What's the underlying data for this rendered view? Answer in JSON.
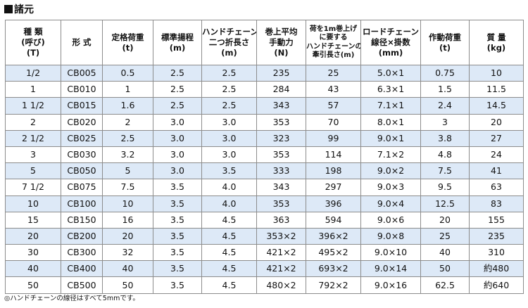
{
  "title": "諸元",
  "headers": [
    [
      "種 類",
      "(呼び)",
      "(T)"
    ],
    [
      "形 式"
    ],
    [
      "定格荷重",
      "(t)"
    ],
    [
      "標準揚程",
      "(m)"
    ],
    [
      "ハンドチェーン",
      "二つ折長さ",
      "(m)"
    ],
    [
      "巻上平均",
      "手動力",
      "(N)"
    ],
    [
      "荷を1m巻上げ",
      "に要する",
      "ハンドチェーンの",
      "牽引長さ(m)"
    ],
    [
      "ロードチェーン",
      "線径×掛数",
      "(mm)"
    ],
    [
      "作動荷重",
      "(t)"
    ],
    [
      "質 量",
      "(kg)"
    ]
  ],
  "rows": [
    [
      "1/2",
      "CB005",
      "0.5",
      "2.5",
      "2.5",
      "235",
      "25",
      "5.0×1",
      "0.75",
      "10"
    ],
    [
      "1",
      "CB010",
      "1",
      "2.5",
      "2.5",
      "284",
      "43",
      "6.3×1",
      "1.5",
      "11.5"
    ],
    [
      "1 1/2",
      "CB015",
      "1.6",
      "2.5",
      "2.5",
      "343",
      "57",
      "7.1×1",
      "2.4",
      "14.5"
    ],
    [
      "2",
      "CB020",
      "2",
      "3.0",
      "3.0",
      "353",
      "70",
      "8.0×1",
      "3",
      "20"
    ],
    [
      "2 1/2",
      "CB025",
      "2.5",
      "3.0",
      "3.0",
      "323",
      "99",
      "9.0×1",
      "3.8",
      "27"
    ],
    [
      "3",
      "CB030",
      "3.2",
      "3.0",
      "3.0",
      "353",
      "114",
      "7.1×2",
      "4.8",
      "24"
    ],
    [
      "5",
      "CB050",
      "5",
      "3.0",
      "3.5",
      "333",
      "198",
      "9.0×2",
      "7.5",
      "41"
    ],
    [
      "7 1/2",
      "CB075",
      "7.5",
      "3.5",
      "4.0",
      "343",
      "297",
      "9.0×3",
      "9.5",
      "63"
    ],
    [
      "10",
      "CB100",
      "10",
      "3.5",
      "4.0",
      "353",
      "396",
      "9.0×4",
      "12.5",
      "83"
    ],
    [
      "15",
      "CB150",
      "16",
      "3.5",
      "4.5",
      "363",
      "594",
      "9.0×6",
      "20",
      "155"
    ],
    [
      "20",
      "CB200",
      "20",
      "3.5",
      "4.5",
      "353×2",
      "396×2",
      "9.0×8",
      "25",
      "235"
    ],
    [
      "30",
      "CB300",
      "32",
      "3.5",
      "4.5",
      "421×2",
      "495×2",
      "9.0×10",
      "40",
      "310"
    ],
    [
      "40",
      "CB400",
      "40",
      "3.5",
      "4.5",
      "421×2",
      "693×2",
      "9.0×14",
      "50",
      "約480"
    ],
    [
      "50",
      "CB500",
      "50",
      "3.5",
      "4.5",
      "480×2",
      "792×2",
      "9.0×16",
      "62.5",
      "約640"
    ]
  ],
  "note": "◎ハンドチェーンの線径はすべて5mmです。",
  "colors": {
    "row_stripe": "#dde9f7",
    "border": "#8c8c8c"
  }
}
